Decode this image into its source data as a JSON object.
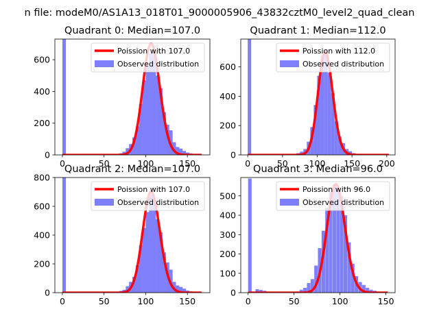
{
  "figure": {
    "suptitle": "n file: modeM0/AS1A13_018T01_9000005906_43832cztM0_level2_quad_clean",
    "colors": {
      "bars": "#7f7ff9",
      "poisson": "#ff0000",
      "axis": "#000000",
      "background": "#ffffff"
    }
  },
  "chart_data": [
    {
      "type": "bar",
      "title": "Quadrant 0: Median=107.0",
      "median": 107.0,
      "xlim": [
        -9,
        177
      ],
      "ylim": [
        0,
        730
      ],
      "xticks": [
        0,
        50,
        100,
        150
      ],
      "yticks": [
        0,
        200,
        400,
        600
      ],
      "bin_width": 4.25,
      "legend": {
        "placement": "upper-right",
        "entries": [
          "Poission with 107.0",
          "Observed distribution"
        ]
      },
      "series": [
        {
          "name": "Observed distribution",
          "kind": "histogram",
          "x": [
            0,
            4,
            8,
            12,
            16,
            20,
            24,
            28,
            32,
            36,
            40,
            44,
            48,
            52,
            56,
            60,
            64,
            68,
            72,
            76,
            80,
            84,
            88,
            92,
            96,
            100,
            104,
            108,
            112,
            116,
            120,
            124,
            128,
            132,
            136,
            140,
            144,
            148,
            152,
            156,
            160,
            164
          ],
          "values": [
            730,
            5,
            5,
            3,
            2,
            2,
            1,
            1,
            1,
            1,
            1,
            1,
            1,
            1,
            2,
            2,
            5,
            10,
            20,
            42,
            68,
            110,
            180,
            320,
            470,
            560,
            640,
            650,
            500,
            420,
            270,
            190,
            155,
            80,
            50,
            40,
            25,
            15,
            10,
            5,
            2,
            1
          ]
        },
        {
          "name": "Poission with 107.0",
          "kind": "poisson-curve",
          "mean": 107.0,
          "scale": 700,
          "x_range": [
            0,
            167
          ]
        }
      ]
    },
    {
      "type": "bar",
      "title": "Quadrant 1: Median=112.0",
      "median": 112.0,
      "xlim": [
        -10,
        212
      ],
      "ylim": [
        0,
        790
      ],
      "xticks": [
        0,
        50,
        100,
        150,
        200
      ],
      "yticks": [
        0,
        200,
        400,
        600
      ],
      "bin_width": 5,
      "legend": {
        "placement": "upper-right",
        "entries": [
          "Poission with 112.0",
          "Observed distribution"
        ]
      },
      "series": [
        {
          "name": "Observed distribution",
          "kind": "histogram",
          "x": [
            0,
            5,
            10,
            15,
            20,
            25,
            30,
            35,
            40,
            45,
            50,
            55,
            60,
            65,
            70,
            75,
            80,
            85,
            90,
            95,
            100,
            105,
            110,
            115,
            120,
            125,
            130,
            135,
            140,
            145,
            150,
            155,
            160,
            165,
            170,
            175,
            180,
            185,
            190,
            195,
            200
          ],
          "values": [
            790,
            5,
            3,
            2,
            1,
            1,
            1,
            1,
            1,
            1,
            1,
            2,
            2,
            5,
            12,
            22,
            40,
            90,
            190,
            340,
            540,
            680,
            720,
            560,
            420,
            230,
            125,
            80,
            40,
            25,
            12,
            6,
            4,
            2,
            1,
            1,
            1,
            0,
            0,
            0,
            0
          ]
        },
        {
          "name": "Poission with 112.0",
          "kind": "poisson-curve",
          "mean": 112.0,
          "scale": 700,
          "x_range": [
            0,
            203
          ]
        }
      ]
    },
    {
      "type": "bar",
      "title": "Quadrant 2: Median=107.0",
      "median": 107.0,
      "xlim": [
        -9,
        177
      ],
      "ylim": [
        0,
        800
      ],
      "xticks": [
        0,
        50,
        100,
        150
      ],
      "yticks": [
        0,
        200,
        400,
        600,
        800
      ],
      "bin_width": 4.25,
      "legend": {
        "placement": "upper-right",
        "entries": [
          "Poission with 107.0",
          "Observed distribution"
        ]
      },
      "series": [
        {
          "name": "Observed distribution",
          "kind": "histogram",
          "x": [
            0,
            4,
            8,
            12,
            16,
            20,
            24,
            28,
            32,
            36,
            40,
            44,
            48,
            52,
            56,
            60,
            64,
            68,
            72,
            76,
            80,
            84,
            88,
            92,
            96,
            100,
            104,
            108,
            112,
            116,
            120,
            124,
            128,
            132,
            136,
            140,
            144,
            148,
            152,
            156,
            160,
            164
          ],
          "values": [
            800,
            5,
            5,
            3,
            2,
            2,
            1,
            1,
            1,
            1,
            1,
            1,
            1,
            1,
            2,
            2,
            5,
            12,
            20,
            45,
            75,
            110,
            190,
            330,
            450,
            560,
            680,
            640,
            510,
            420,
            280,
            210,
            160,
            75,
            50,
            40,
            28,
            15,
            10,
            5,
            2,
            1
          ]
        },
        {
          "name": "Poission with 107.0",
          "kind": "poisson-curve",
          "mean": 107.0,
          "scale": 700,
          "x_range": [
            0,
            167
          ]
        }
      ]
    },
    {
      "type": "bar",
      "title": "Quadrant 3: Median=96.0",
      "median": 96.0,
      "xlim": [
        -8,
        160
      ],
      "ylim": [
        0,
        595
      ],
      "xticks": [
        0,
        50,
        100,
        150
      ],
      "yticks": [
        0,
        100,
        200,
        300,
        400,
        500
      ],
      "bin_width": 3.8,
      "legend": {
        "placement": "upper-right",
        "entries": [
          "Poission with 96.0",
          "Observed distribution"
        ]
      },
      "series": [
        {
          "name": "Observed distribution",
          "kind": "histogram",
          "x": [
            0,
            4,
            8,
            12,
            16,
            20,
            24,
            28,
            32,
            36,
            40,
            44,
            48,
            52,
            56,
            60,
            64,
            68,
            72,
            76,
            80,
            84,
            88,
            92,
            96,
            100,
            104,
            108,
            112,
            116,
            120,
            124,
            128,
            132,
            136,
            140,
            144,
            148,
            152
          ],
          "values": [
            590,
            5,
            18,
            14,
            10,
            5,
            2,
            1,
            1,
            1,
            1,
            2,
            3,
            5,
            15,
            25,
            50,
            70,
            140,
            230,
            320,
            440,
            520,
            560,
            540,
            500,
            400,
            260,
            150,
            85,
            55,
            40,
            25,
            15,
            10,
            5,
            2,
            1,
            0
          ]
        },
        {
          "name": "Poission with 96.0",
          "kind": "poisson-curve",
          "mean": 96.0,
          "scale": 560,
          "x_range": [
            0,
            152
          ]
        }
      ]
    }
  ]
}
